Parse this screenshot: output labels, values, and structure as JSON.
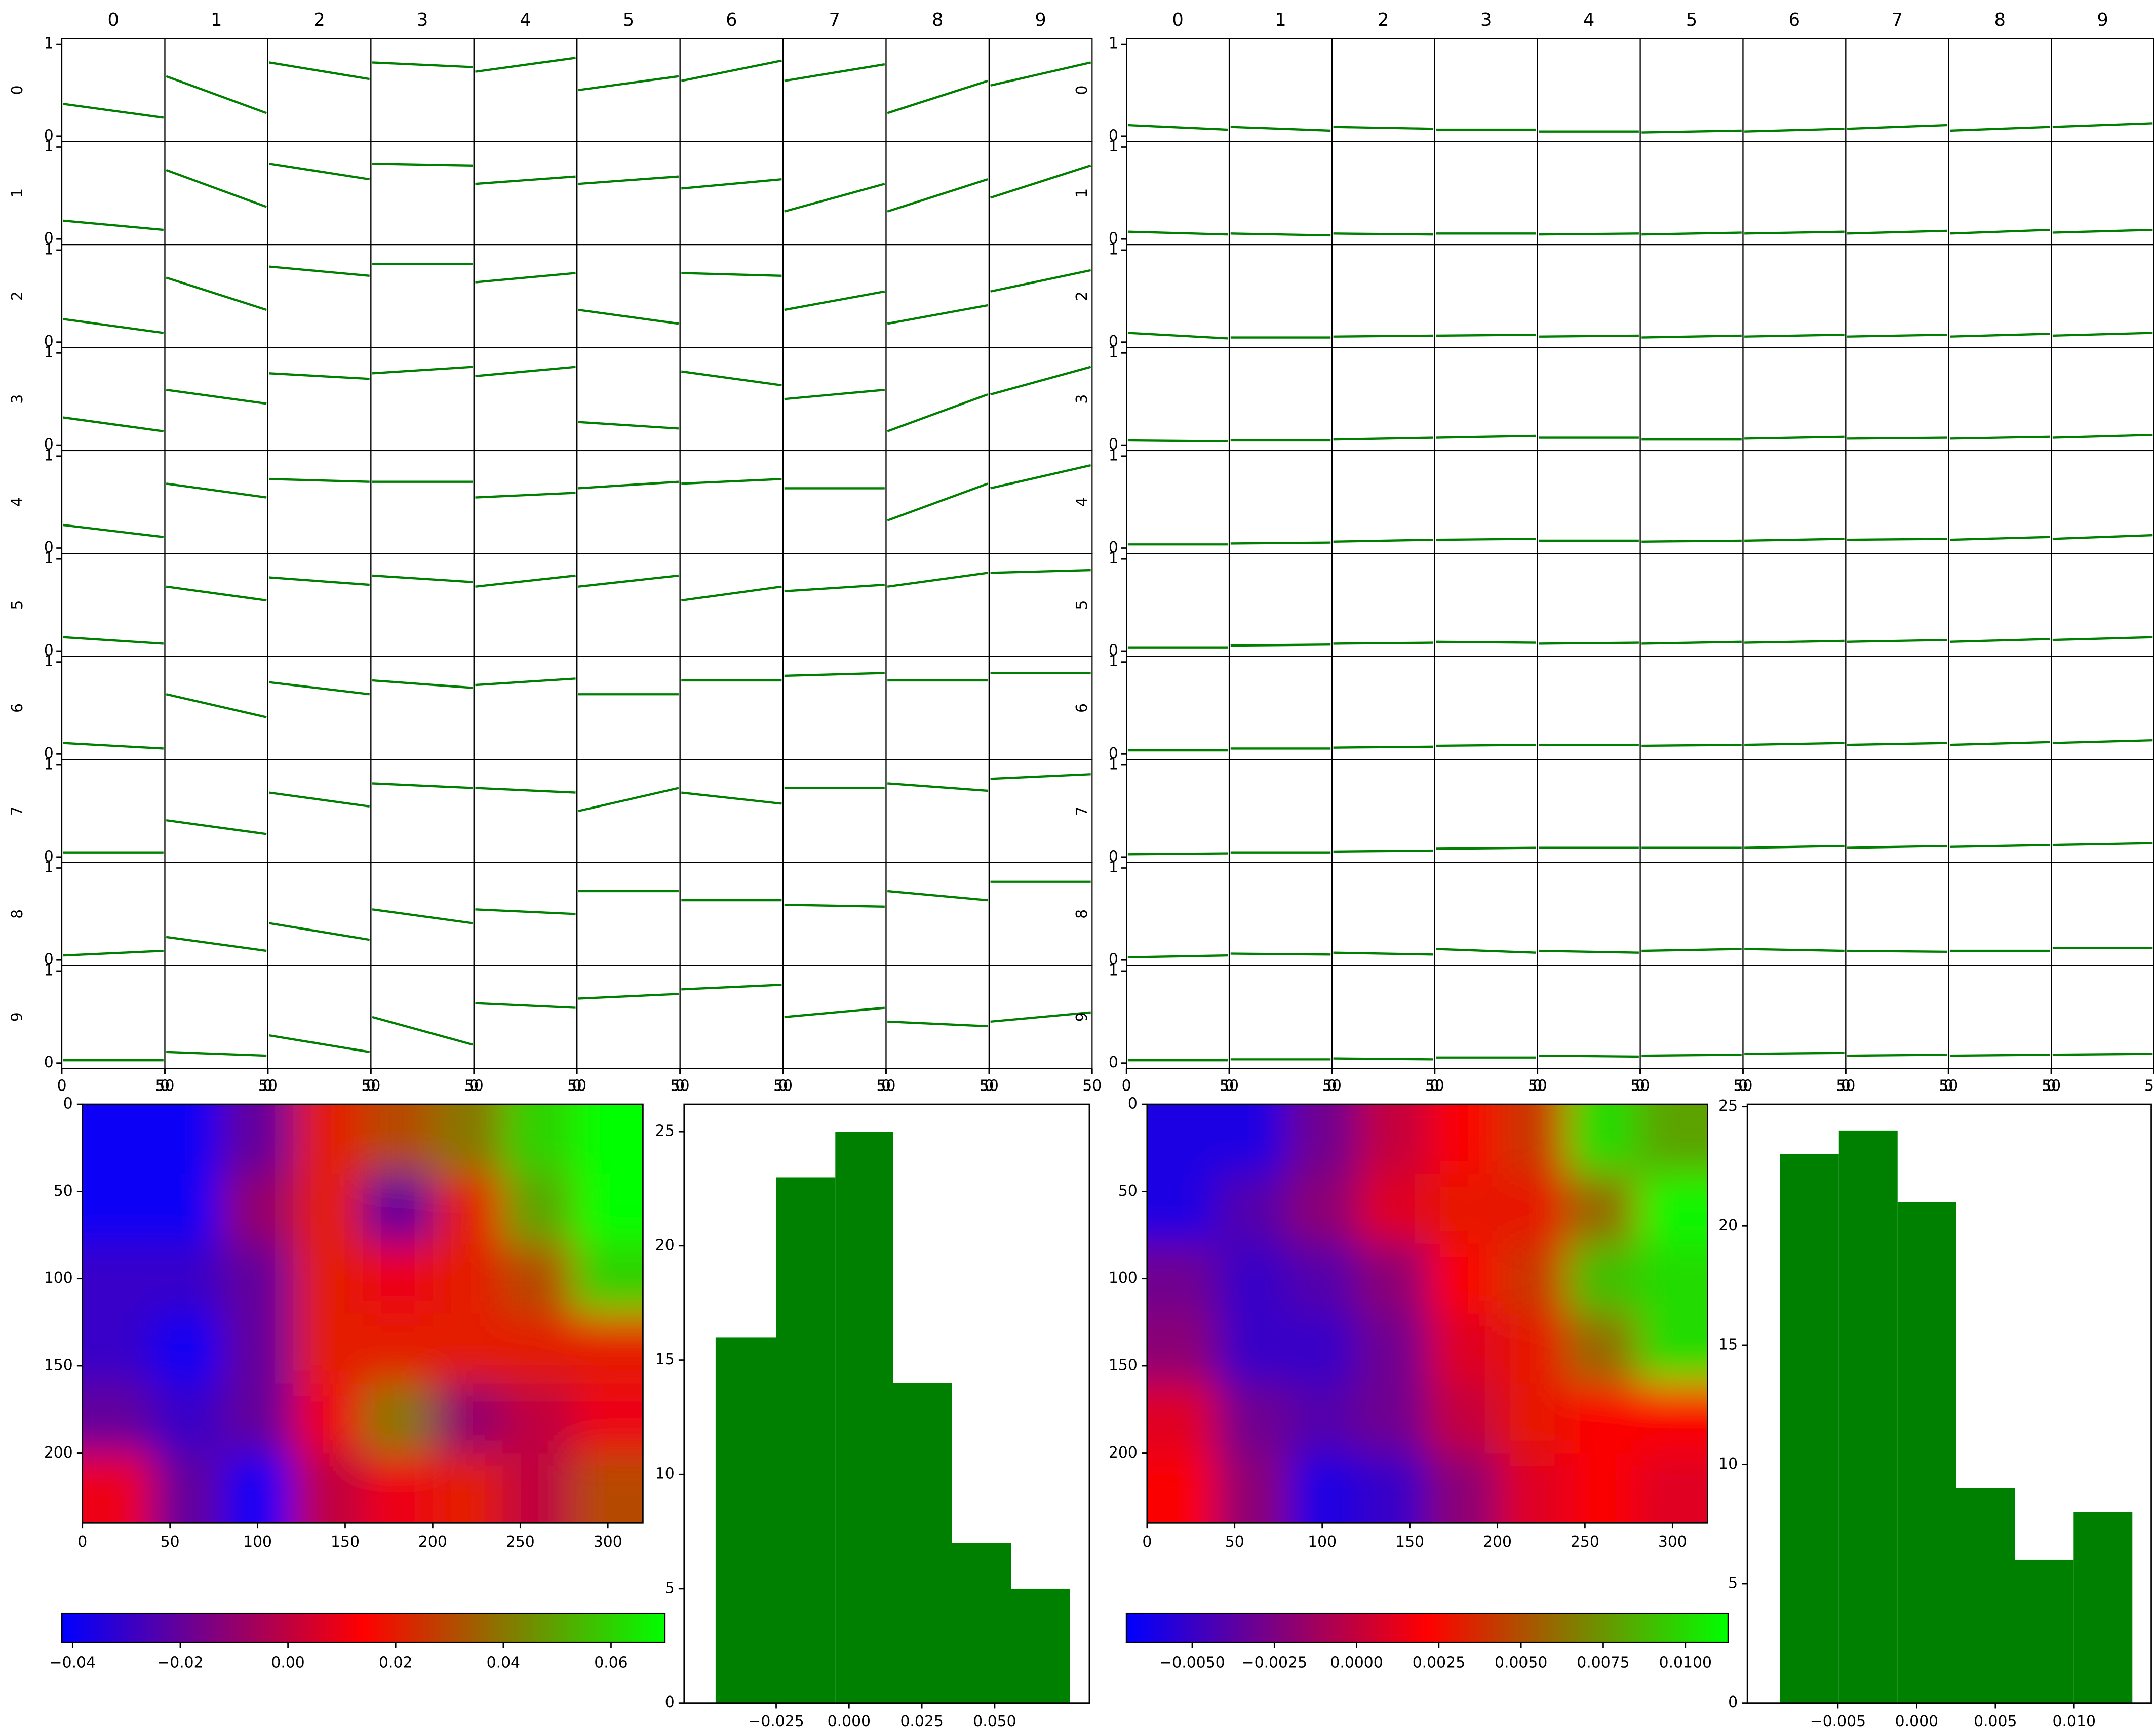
{
  "chart_data": [
    {
      "type": "scatter_matrix",
      "columns": [
        "0",
        "1",
        "2",
        "3",
        "4",
        "5",
        "6",
        "7",
        "8",
        "9"
      ],
      "xlim": [
        0,
        50
      ],
      "xticks": [
        0,
        50
      ],
      "ylim": [
        0,
        1
      ],
      "yticks": [
        0,
        1
      ],
      "line_color": "#008000",
      "trend_lines": [
        [
          [
            0.35,
            0.2
          ],
          [
            0.65,
            0.25
          ],
          [
            0.8,
            0.62
          ],
          [
            0.8,
            0.75
          ],
          [
            0.7,
            0.85
          ],
          [
            0.5,
            0.65
          ],
          [
            0.6,
            0.82
          ],
          [
            0.6,
            0.78
          ],
          [
            0.25,
            0.6
          ],
          [
            0.55,
            0.8
          ]
        ],
        [
          [
            0.2,
            0.1
          ],
          [
            0.75,
            0.35
          ],
          [
            0.82,
            0.65
          ],
          [
            0.82,
            0.8
          ],
          [
            0.6,
            0.68
          ],
          [
            0.6,
            0.68
          ],
          [
            0.55,
            0.65
          ],
          [
            0.3,
            0.6
          ],
          [
            0.3,
            0.65
          ],
          [
            0.45,
            0.8
          ]
        ],
        [
          [
            0.25,
            0.1
          ],
          [
            0.7,
            0.35
          ],
          [
            0.82,
            0.72
          ],
          [
            0.85,
            0.85
          ],
          [
            0.65,
            0.75
          ],
          [
            0.35,
            0.2
          ],
          [
            0.75,
            0.72
          ],
          [
            0.35,
            0.55
          ],
          [
            0.2,
            0.4
          ],
          [
            0.55,
            0.78
          ]
        ],
        [
          [
            0.3,
            0.15
          ],
          [
            0.6,
            0.45
          ],
          [
            0.78,
            0.72
          ],
          [
            0.78,
            0.85
          ],
          [
            0.75,
            0.85
          ],
          [
            0.25,
            0.18
          ],
          [
            0.8,
            0.65
          ],
          [
            0.5,
            0.6
          ],
          [
            0.15,
            0.55
          ],
          [
            0.55,
            0.85
          ]
        ],
        [
          [
            0.25,
            0.12
          ],
          [
            0.7,
            0.55
          ],
          [
            0.75,
            0.72
          ],
          [
            0.72,
            0.72
          ],
          [
            0.55,
            0.6
          ],
          [
            0.65,
            0.72
          ],
          [
            0.7,
            0.75
          ],
          [
            0.65,
            0.65
          ],
          [
            0.3,
            0.7
          ],
          [
            0.65,
            0.9
          ]
        ],
        [
          [
            0.15,
            0.08
          ],
          [
            0.7,
            0.55
          ],
          [
            0.8,
            0.72
          ],
          [
            0.82,
            0.75
          ],
          [
            0.7,
            0.82
          ],
          [
            0.7,
            0.82
          ],
          [
            0.55,
            0.7
          ],
          [
            0.65,
            0.72
          ],
          [
            0.7,
            0.85
          ],
          [
            0.85,
            0.88
          ]
        ],
        [
          [
            0.12,
            0.06
          ],
          [
            0.65,
            0.4
          ],
          [
            0.78,
            0.65
          ],
          [
            0.8,
            0.72
          ],
          [
            0.75,
            0.82
          ],
          [
            0.65,
            0.65
          ],
          [
            0.8,
            0.8
          ],
          [
            0.85,
            0.88
          ],
          [
            0.8,
            0.8
          ],
          [
            0.88,
            0.88
          ]
        ],
        [
          [
            0.05,
            0.05
          ],
          [
            0.4,
            0.25
          ],
          [
            0.7,
            0.55
          ],
          [
            0.8,
            0.75
          ],
          [
            0.75,
            0.7
          ],
          [
            0.5,
            0.75
          ],
          [
            0.7,
            0.58
          ],
          [
            0.75,
            0.75
          ],
          [
            0.8,
            0.72
          ],
          [
            0.85,
            0.9
          ]
        ],
        [
          [
            0.05,
            0.1
          ],
          [
            0.25,
            0.1
          ],
          [
            0.4,
            0.22
          ],
          [
            0.55,
            0.4
          ],
          [
            0.55,
            0.5
          ],
          [
            0.75,
            0.75
          ],
          [
            0.65,
            0.65
          ],
          [
            0.6,
            0.58
          ],
          [
            0.75,
            0.65
          ],
          [
            0.85,
            0.85
          ]
        ],
        [
          [
            0.03,
            0.03
          ],
          [
            0.12,
            0.08
          ],
          [
            0.3,
            0.12
          ],
          [
            0.5,
            0.2
          ],
          [
            0.65,
            0.6
          ],
          [
            0.7,
            0.75
          ],
          [
            0.8,
            0.85
          ],
          [
            0.5,
            0.6
          ],
          [
            0.45,
            0.4
          ],
          [
            0.45,
            0.55
          ]
        ]
      ]
    },
    {
      "type": "scatter_matrix",
      "columns": [
        "0",
        "1",
        "2",
        "3",
        "4",
        "5",
        "6",
        "7",
        "8",
        "9"
      ],
      "xlim": [
        0,
        50
      ],
      "xticks": [
        0,
        50
      ],
      "ylim": [
        0,
        1
      ],
      "yticks": [
        0,
        1
      ],
      "line_color": "#008000",
      "trend_lines": [
        [
          [
            0.12,
            0.07
          ],
          [
            0.1,
            0.06
          ],
          [
            0.1,
            0.08
          ],
          [
            0.07,
            0.07
          ],
          [
            0.05,
            0.05
          ],
          [
            0.04,
            0.06
          ],
          [
            0.05,
            0.08
          ],
          [
            0.08,
            0.12
          ],
          [
            0.06,
            0.1
          ],
          [
            0.1,
            0.14
          ]
        ],
        [
          [
            0.08,
            0.05
          ],
          [
            0.06,
            0.04
          ],
          [
            0.06,
            0.05
          ],
          [
            0.06,
            0.06
          ],
          [
            0.05,
            0.06
          ],
          [
            0.05,
            0.07
          ],
          [
            0.06,
            0.08
          ],
          [
            0.06,
            0.09
          ],
          [
            0.06,
            0.1
          ],
          [
            0.07,
            0.1
          ]
        ],
        [
          [
            0.1,
            0.04
          ],
          [
            0.05,
            0.05
          ],
          [
            0.06,
            0.07
          ],
          [
            0.07,
            0.08
          ],
          [
            0.06,
            0.07
          ],
          [
            0.05,
            0.07
          ],
          [
            0.06,
            0.08
          ],
          [
            0.06,
            0.08
          ],
          [
            0.06,
            0.09
          ],
          [
            0.07,
            0.1
          ]
        ],
        [
          [
            0.05,
            0.04
          ],
          [
            0.05,
            0.05
          ],
          [
            0.06,
            0.08
          ],
          [
            0.08,
            0.1
          ],
          [
            0.08,
            0.08
          ],
          [
            0.06,
            0.06
          ],
          [
            0.07,
            0.09
          ],
          [
            0.07,
            0.08
          ],
          [
            0.07,
            0.09
          ],
          [
            0.08,
            0.11
          ]
        ],
        [
          [
            0.04,
            0.04
          ],
          [
            0.05,
            0.06
          ],
          [
            0.07,
            0.09
          ],
          [
            0.09,
            0.1
          ],
          [
            0.08,
            0.08
          ],
          [
            0.07,
            0.08
          ],
          [
            0.08,
            0.1
          ],
          [
            0.09,
            0.1
          ],
          [
            0.09,
            0.12
          ],
          [
            0.1,
            0.14
          ]
        ],
        [
          [
            0.04,
            0.04
          ],
          [
            0.06,
            0.07
          ],
          [
            0.08,
            0.09
          ],
          [
            0.1,
            0.09
          ],
          [
            0.08,
            0.09
          ],
          [
            0.08,
            0.1
          ],
          [
            0.09,
            0.11
          ],
          [
            0.1,
            0.12
          ],
          [
            0.1,
            0.13
          ],
          [
            0.12,
            0.15
          ]
        ],
        [
          [
            0.04,
            0.04
          ],
          [
            0.06,
            0.06
          ],
          [
            0.07,
            0.08
          ],
          [
            0.09,
            0.1
          ],
          [
            0.1,
            0.1
          ],
          [
            0.09,
            0.1
          ],
          [
            0.1,
            0.12
          ],
          [
            0.1,
            0.12
          ],
          [
            0.1,
            0.13
          ],
          [
            0.12,
            0.15
          ]
        ],
        [
          [
            0.03,
            0.04
          ],
          [
            0.05,
            0.05
          ],
          [
            0.06,
            0.07
          ],
          [
            0.09,
            0.1
          ],
          [
            0.1,
            0.1
          ],
          [
            0.1,
            0.1
          ],
          [
            0.1,
            0.12
          ],
          [
            0.1,
            0.12
          ],
          [
            0.11,
            0.13
          ],
          [
            0.13,
            0.15
          ]
        ],
        [
          [
            0.03,
            0.05
          ],
          [
            0.07,
            0.06
          ],
          [
            0.08,
            0.06
          ],
          [
            0.12,
            0.08
          ],
          [
            0.1,
            0.08
          ],
          [
            0.1,
            0.12
          ],
          [
            0.12,
            0.1
          ],
          [
            0.1,
            0.09
          ],
          [
            0.1,
            0.1
          ],
          [
            0.13,
            0.13
          ]
        ],
        [
          [
            0.03,
            0.03
          ],
          [
            0.04,
            0.04
          ],
          [
            0.05,
            0.04
          ],
          [
            0.06,
            0.06
          ],
          [
            0.08,
            0.07
          ],
          [
            0.08,
            0.09
          ],
          [
            0.1,
            0.11
          ],
          [
            0.08,
            0.09
          ],
          [
            0.08,
            0.09
          ],
          [
            0.09,
            0.1
          ]
        ]
      ]
    },
    {
      "type": "heatmap",
      "xlim": [
        0,
        320
      ],
      "ylim": [
        240,
        0
      ],
      "xticks": [
        0,
        50,
        100,
        150,
        200,
        250,
        300
      ],
      "yticks": [
        0,
        50,
        100,
        150,
        200
      ],
      "colormap": [
        "#0000ff",
        "#ff0000",
        "#00ff00"
      ],
      "values": [
        [
          -0.04,
          -0.04,
          -0.02,
          0.02,
          0.03,
          0.04,
          0.06,
          0.07
        ],
        [
          -0.04,
          -0.04,
          -0.01,
          0.02,
          -0.02,
          0.02,
          0.05,
          0.07
        ],
        [
          -0.03,
          -0.03,
          -0.02,
          0.02,
          0.01,
          0.02,
          0.03,
          0.06
        ],
        [
          -0.03,
          -0.04,
          -0.02,
          0.02,
          0.02,
          0.02,
          0.02,
          0.02
        ],
        [
          -0.02,
          -0.03,
          -0.02,
          0.01,
          0.04,
          -0.01,
          0.0,
          0.01
        ],
        [
          0.01,
          -0.02,
          -0.04,
          0.0,
          0.01,
          0.02,
          0.0,
          0.03
        ]
      ],
      "colorbar_lim": [
        -0.042,
        0.07
      ],
      "colorbar_ticks": [
        {
          "value": -0.04,
          "label": "−0.04"
        },
        {
          "value": -0.02,
          "label": "−0.02"
        },
        {
          "value": 0,
          "label": "0.00"
        },
        {
          "value": 0.02,
          "label": "0.02"
        },
        {
          "value": 0.04,
          "label": "0.04"
        },
        {
          "value": 0.06,
          "label": "0.06"
        }
      ]
    },
    {
      "type": "histogram",
      "color": "#008000",
      "bins": [
        -0.0458,
        -0.025,
        -0.0047,
        0.0151,
        0.0354,
        0.0557,
        0.0759
      ],
      "counts": [
        16,
        23,
        25,
        14,
        7,
        5
      ],
      "xlim": [
        -0.0566,
        0.0825
      ],
      "ylim": [
        0,
        26.2
      ],
      "yticks": [
        0,
        5,
        10,
        15,
        20,
        25
      ],
      "xticks": [
        {
          "value": -0.025,
          "label": "−0.025"
        },
        {
          "value": 0,
          "label": "0.000"
        },
        {
          "value": 0.025,
          "label": "0.025"
        },
        {
          "value": 0.05,
          "label": "0.050"
        }
      ]
    },
    {
      "type": "heatmap",
      "xlim": [
        0,
        320
      ],
      "ylim": [
        240,
        0
      ],
      "xticks": [
        0,
        50,
        100,
        150,
        200,
        250,
        300
      ],
      "yticks": [
        0,
        50,
        100,
        150,
        200
      ],
      "colormap": [
        "#0000ff",
        "#ff0000",
        "#00ff00"
      ],
      "values": [
        [
          -0.006,
          -0.006,
          -0.003,
          0.0,
          0.002,
          0.004,
          0.01,
          0.008
        ],
        [
          -0.006,
          -0.004,
          -0.002,
          0.001,
          0.003,
          0.003,
          0.006,
          0.011
        ],
        [
          -0.003,
          -0.005,
          -0.004,
          -0.002,
          0.002,
          0.004,
          0.009,
          0.01
        ],
        [
          -0.002,
          -0.005,
          -0.005,
          -0.003,
          0.001,
          0.003,
          0.006,
          0.01
        ],
        [
          0.001,
          -0.003,
          -0.004,
          -0.003,
          0.0,
          0.003,
          0.002,
          0.002
        ],
        [
          0.002,
          -0.002,
          -0.006,
          -0.005,
          -0.002,
          0.001,
          0.002,
          0.001
        ]
      ],
      "colorbar_lim": [
        -0.007,
        0.0113
      ],
      "colorbar_ticks": [
        {
          "value": -0.005,
          "label": "−0.0050"
        },
        {
          "value": -0.0025,
          "label": "−0.0025"
        },
        {
          "value": 0,
          "label": "0.0000"
        },
        {
          "value": 0.0025,
          "label": "0.0025"
        },
        {
          "value": 0.005,
          "label": "0.0050"
        },
        {
          "value": 0.0075,
          "label": "0.0075"
        },
        {
          "value": 0.01,
          "label": "0.0100"
        }
      ]
    },
    {
      "type": "histogram",
      "color": "#008000",
      "bins": [
        -0.00867,
        -0.00494,
        -0.00121,
        0.00251,
        0.00624,
        0.00997,
        0.0137
      ],
      "counts": [
        23,
        24,
        21,
        9,
        6,
        8
      ],
      "xlim": [
        -0.01075,
        0.0149
      ],
      "ylim": [
        0,
        25.1
      ],
      "yticks": [
        0,
        5,
        10,
        15,
        20,
        25
      ],
      "xticks": [
        {
          "value": -0.005,
          "label": "−0.005"
        },
        {
          "value": 0,
          "label": "0.000"
        },
        {
          "value": 0.005,
          "label": "0.005"
        },
        {
          "value": 0.01,
          "label": "0.010"
        }
      ]
    }
  ]
}
